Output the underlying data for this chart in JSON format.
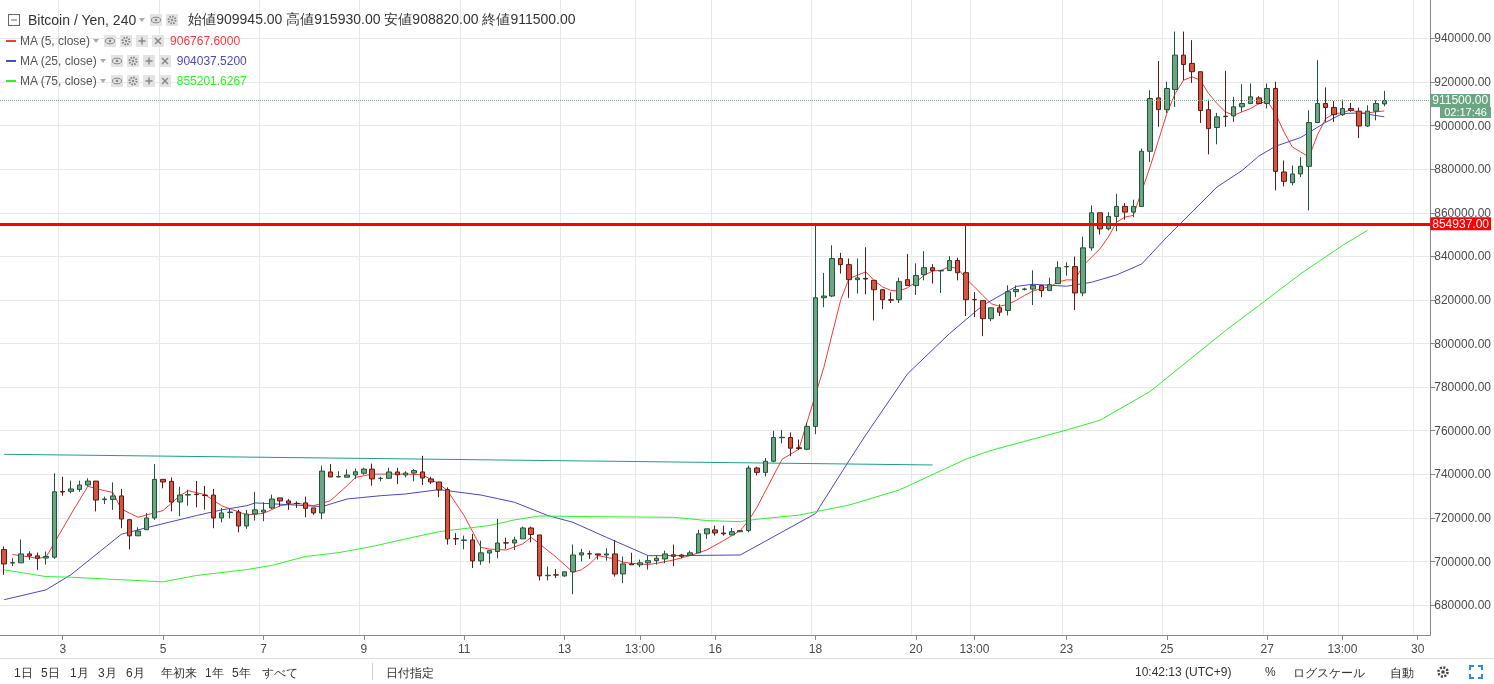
{
  "chart_data": {
    "type": "candlestick",
    "title": "Bitcoin / Yen, 240",
    "subtitle": "始値909945.00 高値915930.00 安値908820.00 終値911500.00",
    "categories": [
      null,
      null,
      null,
      null,
      null,
      null,
      null,
      "3",
      null,
      null,
      null,
      null,
      null,
      null,
      null,
      null,
      null,
      null,
      null,
      "5",
      null,
      null,
      null,
      null,
      null,
      null,
      null,
      null,
      null,
      null,
      null,
      "7",
      null,
      null,
      null,
      null,
      null,
      null,
      null,
      null,
      null,
      null,
      null,
      "9",
      null,
      null,
      null,
      null,
      null,
      null,
      null,
      null,
      null,
      null,
      null,
      "11",
      null,
      null,
      null,
      null,
      null,
      null,
      null,
      null,
      null,
      null,
      null,
      "13",
      null,
      null,
      null,
      null,
      null,
      null,
      null,
      null,
      "13:00",
      null,
      null,
      null,
      null,
      null,
      null,
      null,
      null,
      "16",
      null,
      null,
      null,
      null,
      null,
      null,
      null,
      null,
      null,
      null,
      null,
      "18",
      null,
      null,
      null,
      null,
      null,
      null,
      null,
      null,
      null,
      null,
      null,
      "20",
      null,
      null,
      null,
      null,
      null,
      null,
      "13:00",
      null,
      null,
      null,
      null,
      null,
      null,
      null,
      null,
      null,
      null,
      "23",
      null,
      null,
      null,
      null,
      null,
      null,
      null,
      null,
      null,
      null,
      null,
      "25",
      null,
      null,
      null,
      null,
      null,
      null,
      null,
      null,
      null,
      null,
      null,
      "27",
      null,
      null,
      null,
      null,
      null,
      null,
      null,
      null,
      "13:00",
      null,
      null,
      null,
      null,
      null,
      null,
      null,
      null,
      "30",
      null
    ],
    "ylim": [
      666300,
      957600
    ],
    "yticks": [
      {
        "value": 680000,
        "label": "680000.00"
      },
      {
        "value": 700000,
        "label": "700000.00"
      },
      {
        "value": 720000,
        "label": "720000.00"
      },
      {
        "value": 740000,
        "label": "740000.00"
      },
      {
        "value": 760000,
        "label": "760000.00"
      },
      {
        "value": 780000,
        "label": "780000.00"
      },
      {
        "value": 800000,
        "label": "800000.00"
      },
      {
        "value": 820000,
        "label": "820000.00"
      },
      {
        "value": 840000,
        "label": "840000.00"
      },
      {
        "value": 860000,
        "label": "860000.00"
      },
      {
        "value": 880000,
        "label": "880000.00"
      },
      {
        "value": 900000,
        "label": "900000.00"
      },
      {
        "value": 920000,
        "label": "920000.00"
      },
      {
        "value": 940000,
        "label": "940000.00"
      }
    ],
    "grid": true,
    "legend": "top left",
    "marker": "none",
    "series": [
      {
        "ohlc": [
          [
            705500,
            706900,
            693900,
            698900
          ],
          [
            699300,
            701500,
            697900,
            699500
          ],
          [
            699400,
            710100,
            699400,
            703500
          ],
          [
            703500,
            704700,
            700800,
            702600
          ],
          [
            702600,
            704100,
            696200,
            701500
          ],
          [
            701600,
            704600,
            698600,
            702300
          ],
          [
            702000,
            740500,
            701200,
            732000
          ],
          [
            732100,
            738900,
            730200,
            731900
          ],
          [
            732200,
            737100,
            731300,
            733300
          ],
          [
            733100,
            737100,
            732000,
            735100
          ],
          [
            735100,
            738200,
            734500,
            736900
          ],
          [
            736900,
            737000,
            723000,
            728200
          ],
          [
            728400,
            729800,
            726400,
            728700
          ],
          [
            728500,
            736300,
            723700,
            730100
          ],
          [
            730100,
            733300,
            715300,
            719500
          ],
          [
            719200,
            719300,
            705600,
            711800
          ],
          [
            711800,
            715700,
            711700,
            714000
          ],
          [
            714600,
            722300,
            714600,
            720000
          ],
          [
            720000,
            744700,
            719100,
            737700
          ],
          [
            737700,
            737700,
            733600,
            736500
          ],
          [
            736800,
            738600,
            723000,
            727300
          ],
          [
            727300,
            734300,
            720800,
            730500
          ],
          [
            730500,
            733000,
            725600,
            730700
          ],
          [
            730900,
            737000,
            724900,
            730700
          ],
          [
            730500,
            734700,
            723800,
            730300
          ],
          [
            730500,
            733300,
            715300,
            720000
          ],
          [
            720000,
            724600,
            718000,
            722300
          ],
          [
            722500,
            724100,
            719800,
            722700
          ],
          [
            722700,
            723700,
            713400,
            716300
          ],
          [
            716300,
            723700,
            715000,
            721800
          ],
          [
            721800,
            732000,
            718800,
            723700
          ],
          [
            722700,
            727200,
            718500,
            723600
          ],
          [
            724600,
            730700,
            724100,
            728700
          ],
          [
            729200,
            729200,
            725200,
            727800
          ],
          [
            727800,
            728700,
            723700,
            726700
          ],
          [
            726700,
            727600,
            724600,
            726600
          ],
          [
            726900,
            729800,
            720300,
            724400
          ],
          [
            724600,
            724600,
            721400,
            722300
          ],
          [
            722300,
            744000,
            719400,
            741500
          ],
          [
            741100,
            744700,
            738800,
            738800
          ],
          [
            738800,
            741400,
            738600,
            739000
          ],
          [
            738700,
            742300,
            738600,
            739700
          ],
          [
            739700,
            742700,
            737900,
            741200
          ],
          [
            740500,
            743000,
            739800,
            742400
          ],
          [
            742400,
            744900,
            734800,
            737900
          ],
          [
            738100,
            738900,
            736800,
            738200
          ],
          [
            738200,
            743000,
            737900,
            741100
          ],
          [
            741100,
            743000,
            735600,
            739800
          ],
          [
            739700,
            741400,
            738600,
            740600
          ],
          [
            740600,
            742400,
            736800,
            741700
          ],
          [
            741100,
            748500,
            735100,
            738300
          ],
          [
            737900,
            738900,
            735600,
            736500
          ],
          [
            736500,
            736500,
            729500,
            732800
          ],
          [
            733000,
            734000,
            707800,
            710400
          ],
          [
            710500,
            713000,
            707600,
            710400
          ],
          [
            709700,
            711900,
            705600,
            709900
          ],
          [
            709900,
            712700,
            697000,
            700300
          ],
          [
            700300,
            709600,
            698500,
            704000
          ],
          [
            703900,
            705000,
            699200,
            705000
          ],
          [
            704600,
            719500,
            701500,
            708500
          ],
          [
            708600,
            711000,
            705800,
            708500
          ],
          [
            708500,
            711400,
            705300,
            709900
          ],
          [
            710400,
            716000,
            710400,
            715400
          ],
          [
            715400,
            716000,
            708800,
            712400
          ],
          [
            712200,
            712200,
            691300,
            693400
          ],
          [
            693500,
            697700,
            691300,
            693700
          ],
          [
            693900,
            696600,
            692500,
            693800
          ],
          [
            693400,
            695300,
            693000,
            695300
          ],
          [
            695300,
            707800,
            685000,
            703000
          ],
          [
            703000,
            705800,
            700100,
            704000
          ],
          [
            703600,
            705000,
            701200,
            703500
          ],
          [
            703500,
            703500,
            700900,
            703000
          ],
          [
            703000,
            706100,
            700400,
            703500
          ],
          [
            703500,
            709900,
            693100,
            694300
          ],
          [
            694300,
            702300,
            690100,
            698900
          ],
          [
            698900,
            704000,
            698500,
            698500
          ],
          [
            698500,
            700900,
            697400,
            699400
          ],
          [
            699400,
            702600,
            696300,
            700400
          ],
          [
            700400,
            702700,
            698600,
            701500
          ],
          [
            701200,
            705000,
            699200,
            703500
          ],
          [
            703100,
            707800,
            697900,
            702400
          ],
          [
            703000,
            703500,
            701500,
            702400
          ],
          [
            702900,
            705000,
            702700,
            704000
          ],
          [
            704000,
            714600,
            704000,
            712700
          ],
          [
            712700,
            715000,
            710400,
            715000
          ],
          [
            714500,
            716500,
            711900,
            713100
          ],
          [
            713100,
            716500,
            711900,
            712700
          ],
          [
            712200,
            715400,
            712200,
            713700
          ],
          [
            713700,
            714200,
            713400,
            714200
          ],
          [
            714200,
            744000,
            713400,
            742900
          ],
          [
            742900,
            743500,
            739500,
            740900
          ],
          [
            740900,
            747500,
            739000,
            746000
          ],
          [
            746000,
            760000,
            745500,
            756900
          ],
          [
            756800,
            760300,
            754200,
            757000
          ],
          [
            756900,
            759200,
            748300,
            752000
          ],
          [
            752200,
            756000,
            751100,
            751800
          ],
          [
            751500,
            763800,
            751100,
            762000
          ],
          [
            762000,
            855100,
            758400,
            821000
          ],
          [
            821000,
            832400,
            816700,
            821800
          ],
          [
            821800,
            845100,
            821300,
            839000
          ],
          [
            839000,
            841600,
            832100,
            836200
          ],
          [
            836200,
            839000,
            821000,
            829300
          ],
          [
            829300,
            839000,
            822900,
            830100
          ],
          [
            829900,
            844200,
            822600,
            829600
          ],
          [
            829000,
            829000,
            810600,
            824700
          ],
          [
            824700,
            824700,
            815800,
            820100
          ],
          [
            820100,
            823500,
            818600,
            819900
          ],
          [
            820100,
            830200,
            818600,
            828400
          ],
          [
            829300,
            841000,
            826600,
            826600
          ],
          [
            826600,
            836800,
            822300,
            831200
          ],
          [
            831600,
            842400,
            829000,
            834800
          ],
          [
            834800,
            836400,
            827500,
            833500
          ],
          [
            833300,
            833500,
            823200,
            833500
          ],
          [
            833500,
            840100,
            833500,
            838100
          ],
          [
            838100,
            839400,
            829000,
            832500
          ],
          [
            832500,
            854800,
            812600,
            820100
          ],
          [
            820200,
            823600,
            812100,
            820100
          ],
          [
            819700,
            819700,
            803400,
            811400
          ],
          [
            811400,
            816400,
            810300,
            816400
          ],
          [
            816400,
            818000,
            812600,
            814400
          ],
          [
            815200,
            826700,
            812900,
            823800
          ],
          [
            823800,
            826700,
            821300,
            824800
          ],
          [
            824900,
            825600,
            824400,
            825000
          ],
          [
            825000,
            833600,
            817700,
            826600
          ],
          [
            826600,
            826600,
            821300,
            824300
          ],
          [
            824300,
            830200,
            824300,
            827000
          ],
          [
            827500,
            837800,
            827500,
            834800
          ],
          [
            835200,
            837300,
            831100,
            835300
          ],
          [
            835300,
            839900,
            815400,
            823200
          ],
          [
            823200,
            849100,
            821700,
            843900
          ],
          [
            843900,
            863400,
            842600,
            860000
          ],
          [
            860000,
            860000,
            850000,
            852600
          ],
          [
            852600,
            860300,
            851900,
            858300
          ],
          [
            858300,
            868700,
            851500,
            862900
          ],
          [
            862900,
            864400,
            856800,
            860300
          ],
          [
            860300,
            866000,
            858000,
            862900
          ],
          [
            862900,
            889400,
            862900,
            888200
          ],
          [
            888200,
            916200,
            883300,
            912400
          ],
          [
            912700,
            929600,
            899400,
            907300
          ],
          [
            907300,
            920100,
            905800,
            917000
          ],
          [
            916500,
            943100,
            908600,
            932300
          ],
          [
            932300,
            943100,
            920800,
            928000
          ],
          [
            928500,
            939200,
            919600,
            924700
          ],
          [
            924700,
            924700,
            901200,
            906900
          ],
          [
            907300,
            911900,
            886800,
            898600
          ],
          [
            899100,
            905800,
            891400,
            904000
          ],
          [
            904300,
            925100,
            899400,
            904100
          ],
          [
            904400,
            913200,
            901700,
            908600
          ],
          [
            908600,
            919000,
            906300,
            910100
          ],
          [
            910100,
            919300,
            909800,
            913200
          ],
          [
            912700,
            913500,
            909800,
            910100
          ],
          [
            910100,
            919300,
            907800,
            917000
          ],
          [
            917000,
            920100,
            870300,
            879000
          ],
          [
            878700,
            884000,
            872100,
            874400
          ],
          [
            873800,
            881700,
            872600,
            877800
          ],
          [
            877800,
            885600,
            876400,
            881300
          ],
          [
            881300,
            907000,
            861100,
            901400
          ],
          [
            901400,
            930000,
            901400,
            910100
          ],
          [
            910100,
            917500,
            901700,
            908300
          ],
          [
            908300,
            911300,
            901700,
            905000
          ],
          [
            905000,
            911900,
            904400,
            907800
          ],
          [
            907800,
            910400,
            906300,
            907000
          ],
          [
            906600,
            908200,
            894300,
            899800
          ],
          [
            899800,
            909300,
            899400,
            906600
          ],
          [
            906600,
            911600,
            902400,
            910100
          ],
          [
            909945,
            915930,
            908820,
            911500
          ],
          null,
          null,
          null,
          null,
          null
        ]
      },
      {
        "type": "line",
        "name": "MA (5, close)",
        "color": "#f23a3a",
        "values": [
          null,
          703200,
          702700,
          null,
          701500,
          702000,
          null,
          null,
          721800,
          null,
          734500,
          null,
          732500,
          731700,
          724100,
          null,
          720300,
          null,
          null,
          723400,
          null,
          730200,
          732500,
          null,
          730700,
          null,
          725600,
          null,
          null,
          721400,
          null,
          722100,
          null,
          725600,
          null,
          726700,
          null,
          725600,
          null,
          727900,
          null,
          734800,
          738600,
          null,
          740100,
          null,
          740100,
          null,
          740100,
          null,
          739800,
          null,
          735600,
          732500,
          null,
          721000,
          null,
          706500,
          705700,
          null,
          705300,
          null,
          708100,
          711100,
          null,
          null,
          702000,
          null,
          695100,
          696200,
          698900,
          702700,
          null,
          701200,
          699700,
          699200,
          null,
          698600,
          699200,
          null,
          700700,
          null,
          702700,
          null,
          705300,
          null,
          709600,
          null,
          714200,
          718800,
          724900,
          null,
          null,
          746900,
          null,
          751500,
          null,
          null,
          789100,
          804500,
          819800,
          829800,
          831300,
          832900,
          829000,
          826000,
          824400,
          824100,
          825600,
          828200,
          831300,
          833300,
          833600,
          835200,
          834400,
          829800,
          826000,
          822100,
          818300,
          817100,
          818000,
          819800,
          822100,
          824100,
          825200,
          826000,
          828200,
          829200,
          829200,
          835800,
          839600,
          843400,
          848800,
          855700,
          858000,
          858800,
          null,
          881000,
          893200,
          905500,
          914700,
          920800,
          922400,
          920800,
          914700,
          910100,
          906300,
          904700,
          906300,
          907800,
          910000,
          911300,
          905500,
          897100,
          890200,
          887900,
          885600,
          895600,
          903200,
          905500,
          905800,
          907300,
          905800,
          905800,
          906300,
          906700,
          null,
          null,
          null,
          null,
          null
        ]
      },
      {
        "type": "line",
        "name": "MA (25, close)",
        "color": "#4a4ab8",
        "values": [
          682500,
          null,
          null,
          null,
          null,
          687000,
          null,
          null,
          694000,
          null,
          null,
          null,
          null,
          null,
          712500,
          null,
          null,
          715500,
          null,
          null,
          null,
          null,
          null,
          721100,
          null,
          null,
          723700,
          null,
          null,
          725600,
          726900,
          null,
          null,
          null,
          726100,
          null,
          null,
          null,
          725200,
          null,
          null,
          728700,
          null,
          null,
          null,
          730200,
          null,
          null,
          731000,
          null,
          null,
          null,
          733000,
          null,
          null,
          null,
          null,
          730500,
          null,
          null,
          null,
          727200,
          null,
          null,
          null,
          721100,
          null,
          null,
          718000,
          null,
          null,
          null,
          711100,
          null,
          null,
          null,
          null,
          702700,
          null,
          null,
          702700,
          null,
          null,
          null,
          null,
          null,
          null,
          null,
          703000,
          null,
          707200,
          null,
          null,
          null,
          null,
          null,
          null,
          722000,
          null,
          null,
          null,
          746200,
          null,
          758000,
          null,
          null,
          null,
          null,
          786100,
          null,
          null,
          null,
          null,
          804500,
          null,
          null,
          null,
          817500,
          null,
          null,
          null,
          826200,
          null,
          827200,
          null,
          null,
          null,
          826300,
          null,
          null,
          828100,
          null,
          null,
          831500,
          null,
          null,
          836500,
          null,
          null,
          848800,
          null,
          null,
          860300,
          null,
          null,
          871800,
          null,
          null,
          879400,
          null,
          886000,
          null,
          890500,
          null,
          null,
          894500,
          null,
          null,
          901500,
          null,
          905500,
          null,
          905800,
          null,
          null,
          904000,
          null,
          null,
          null,
          null,
          null
        ]
      },
      {
        "type": "line",
        "name": "MA (75, close)",
        "color": "#2ef02e",
        "values": [
          696200,
          null,
          null,
          null,
          null,
          693100,
          null,
          null,
          692800,
          null,
          null,
          null,
          null,
          null,
          null,
          null,
          null,
          null,
          null,
          690700,
          null,
          null,
          null,
          693600,
          null,
          null,
          null,
          null,
          null,
          696300,
          null,
          null,
          698200,
          null,
          null,
          null,
          702300,
          null,
          null,
          null,
          704100,
          null,
          null,
          null,
          706900,
          null,
          null,
          null,
          710400,
          null,
          null,
          null,
          713700,
          null,
          null,
          null,
          null,
          null,
          716500,
          null,
          null,
          719100,
          null,
          null,
          720900,
          null,
          null,
          null,
          null,
          null,
          720600,
          null,
          null,
          null,
          null,
          null,
          null,
          null,
          null,
          null,
          720300,
          null,
          null,
          null,
          718800,
          null,
          null,
          null,
          718300,
          null,
          719400,
          null,
          null,
          null,
          null,
          721300,
          null,
          null,
          null,
          null,
          null,
          725900,
          null,
          null,
          null,
          null,
          null,
          732800,
          null,
          null,
          null,
          null,
          null,
          null,
          null,
          747000,
          null,
          null,
          751000,
          null,
          null,
          null,
          null,
          null,
          null,
          null,
          null,
          760300,
          null,
          null,
          null,
          764800,
          null,
          null,
          null,
          null,
          null,
          778000,
          null,
          null,
          null,
          null,
          null,
          null,
          null,
          null,
          805900,
          null,
          null,
          null,
          817400,
          null,
          null,
          null,
          null,
          832000,
          null,
          null,
          null,
          null,
          845000,
          null,
          null,
          851900,
          null,
          null,
          null,
          null,
          null,
          null,
          null
        ]
      },
      {
        "type": "line",
        "color": "#1f9b8a",
        "values": [
          749200,
          null,
          null,
          null,
          null,
          null,
          null,
          null,
          null,
          null,
          null,
          null,
          null,
          null,
          null,
          null,
          null,
          null,
          null,
          null,
          null,
          null,
          null,
          null,
          null,
          null,
          null,
          null,
          null,
          null,
          null,
          null,
          null,
          null,
          null,
          null,
          null,
          null,
          null,
          null,
          null,
          null,
          null,
          null,
          null,
          null,
          null,
          null,
          null,
          null,
          null,
          null,
          null,
          null,
          null,
          null,
          null,
          null,
          null,
          null,
          null,
          null,
          null,
          null,
          null,
          null,
          null,
          null,
          null,
          null,
          null,
          null,
          null,
          null,
          null,
          null,
          null,
          null,
          null,
          null,
          null,
          null,
          null,
          null,
          null,
          null,
          null,
          null,
          null,
          null,
          null,
          null,
          null,
          null,
          null,
          null,
          null,
          null,
          null,
          null,
          null,
          null,
          null,
          null,
          null,
          null,
          null,
          null,
          null,
          null,
          null,
          744300,
          null,
          null,
          null,
          null,
          null,
          null,
          null,
          null,
          null,
          null,
          null,
          null,
          null,
          null,
          null,
          null,
          null,
          null,
          null,
          null,
          null,
          null,
          null,
          null,
          null,
          null,
          null,
          null,
          null,
          null,
          null,
          null,
          null,
          null,
          null,
          null,
          null,
          null,
          null,
          null,
          null,
          null,
          null,
          null,
          null,
          null,
          null,
          null,
          null,
          null,
          null,
          null,
          null,
          null,
          null,
          null,
          null,
          null,
          null
        ]
      }
    ],
    "ref_lines": [
      {
        "axis": "y",
        "value": 854937,
        "label": "854937.00",
        "color": "#ff0000",
        "line_style": "solid"
      },
      {
        "axis": "y",
        "value": 911500,
        "label": "911500.00",
        "color": "#6ba583",
        "line_style": "dotted"
      }
    ],
    "annotations": [
      "906767.6000",
      "904037.5200",
      "855201.6267",
      "02:17:46",
      "1日",
      "5日",
      "1月",
      "3月",
      "6月",
      "年初来",
      "1年",
      "5年",
      "すべて",
      "日付指定",
      "10:42:13 (UTC+9)",
      "%",
      "ログスケール",
      "自動"
    ]
  }
}
